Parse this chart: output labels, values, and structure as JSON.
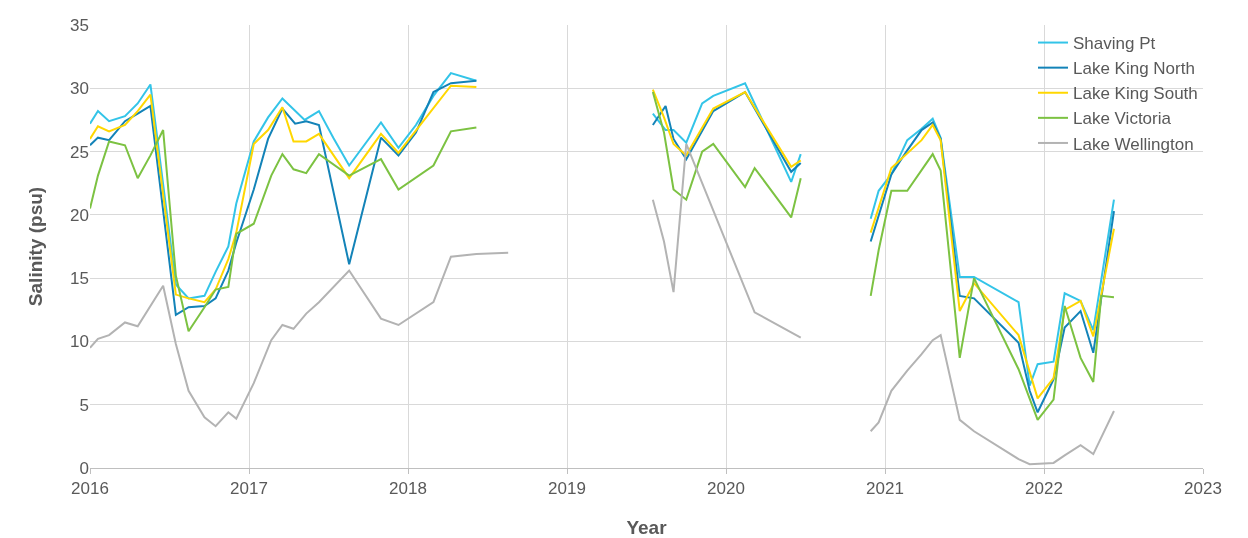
{
  "chart_data": {
    "type": "line",
    "xlabel": "Year",
    "ylabel": "Salinity (psu)",
    "xlim": [
      2016,
      2023
    ],
    "xticks": [
      2016,
      2017,
      2018,
      2019,
      2020,
      2021,
      2022,
      2023
    ],
    "ylim": [
      0,
      35
    ],
    "yticks": [
      0,
      5,
      10,
      15,
      20,
      25,
      30,
      35
    ],
    "grid": true,
    "legend": "top right",
    "marker": "none",
    "line_style": "solid",
    "series": [
      {
        "name": "Shaving Pt",
        "color": "#33c4e8",
        "x": [
          2016.0,
          2016.05,
          2016.12,
          2016.22,
          2016.3,
          2016.38,
          2016.54,
          2016.62,
          2016.72,
          2016.79,
          2016.87,
          2016.92,
          2017.03,
          2017.12,
          2017.21,
          2017.35,
          2017.44,
          2017.53,
          2017.63,
          2017.83,
          2017.94,
          2018.05,
          2018.16,
          2018.27,
          2018.43,
          2019.0,
          2019.54,
          2019.62,
          2019.67,
          2019.75,
          2019.85,
          2019.92,
          2020.12,
          2020.41,
          2020.47,
          2020.7,
          2020.91,
          2020.96,
          2021.04,
          2021.14,
          2021.23,
          2021.3,
          2021.35,
          2021.47,
          2021.56,
          2021.84,
          2021.91,
          2021.96,
          2022.06,
          2022.13,
          2022.23,
          2022.31,
          2022.44
        ],
        "values": [
          27.2,
          28.2,
          27.4,
          27.8,
          28.8,
          30.3,
          14.5,
          13.4,
          13.6,
          15.5,
          17.5,
          20.9,
          25.8,
          27.7,
          29.2,
          27.5,
          28.2,
          26.1,
          23.9,
          27.3,
          25.3,
          27.1,
          29.4,
          31.2,
          30.6,
          null,
          28.0,
          26.7,
          26.7,
          25.7,
          28.8,
          29.4,
          30.4,
          22.6,
          24.8,
          null,
          19.7,
          21.9,
          23.2,
          25.9,
          26.8,
          27.6,
          26.1,
          15.1,
          15.1,
          13.1,
          6.5,
          8.2,
          8.4,
          13.8,
          13.2,
          10.9,
          21.2
        ]
      },
      {
        "name": "Lake King North",
        "color": "#1383b8",
        "x": [
          2016.0,
          2016.05,
          2016.12,
          2016.22,
          2016.3,
          2016.38,
          2016.54,
          2016.62,
          2016.72,
          2016.79,
          2016.87,
          2016.92,
          2017.03,
          2017.12,
          2017.21,
          2017.29,
          2017.36,
          2017.44,
          2017.63,
          2017.83,
          2017.94,
          2018.05,
          2018.16,
          2018.27,
          2018.43,
          2019.0,
          2019.54,
          2019.62,
          2019.67,
          2019.75,
          2019.92,
          2020.12,
          2020.41,
          2020.47,
          2020.7,
          2020.91,
          2021.04,
          2021.14,
          2021.23,
          2021.3,
          2021.35,
          2021.47,
          2021.56,
          2021.84,
          2021.91,
          2021.96,
          2022.06,
          2022.13,
          2022.23,
          2022.31,
          2022.44
        ],
        "values": [
          25.5,
          26.1,
          25.9,
          27.4,
          28.0,
          28.6,
          12.1,
          12.7,
          12.8,
          13.4,
          15.6,
          17.8,
          22.0,
          26.0,
          28.4,
          27.2,
          27.4,
          27.1,
          16.1,
          26.1,
          24.7,
          26.5,
          29.7,
          30.4,
          30.6,
          null,
          27.1,
          28.6,
          26.0,
          24.4,
          28.2,
          29.7,
          23.4,
          24.1,
          null,
          17.9,
          23.2,
          25.1,
          26.7,
          27.3,
          26.0,
          13.6,
          13.4,
          9.9,
          6.1,
          4.4,
          7.0,
          11.1,
          12.4,
          9.1,
          20.3
        ]
      },
      {
        "name": "Lake King South",
        "color": "#ffd700",
        "x": [
          2016.0,
          2016.05,
          2016.12,
          2016.22,
          2016.3,
          2016.38,
          2016.54,
          2016.62,
          2016.72,
          2016.79,
          2016.87,
          2016.92,
          2017.03,
          2017.12,
          2017.21,
          2017.28,
          2017.36,
          2017.44,
          2017.63,
          2017.83,
          2017.94,
          2018.27,
          2018.43,
          2019.0,
          2019.54,
          2019.61,
          2019.67,
          2019.75,
          2019.92,
          2020.12,
          2020.41,
          2020.47,
          2020.7,
          2020.91,
          2021.04,
          2021.23,
          2021.3,
          2021.35,
          2021.47,
          2021.56,
          2021.84,
          2021.96,
          2022.06,
          2022.13,
          2022.23,
          2022.31,
          2022.44
        ],
        "values": [
          26.0,
          27.0,
          26.6,
          27.1,
          28.2,
          29.5,
          13.7,
          13.4,
          13.1,
          14.1,
          16.5,
          18.6,
          25.6,
          26.7,
          28.5,
          25.8,
          25.8,
          26.4,
          22.9,
          26.4,
          24.9,
          30.2,
          30.1,
          null,
          29.9,
          27.7,
          25.6,
          24.7,
          28.4,
          29.7,
          23.8,
          24.3,
          null,
          18.6,
          23.7,
          25.9,
          27.1,
          25.9,
          12.4,
          14.6,
          10.5,
          5.5,
          7.1,
          12.5,
          13.2,
          10.4,
          18.9
        ]
      },
      {
        "name": "Lake Victoria",
        "color": "#7cc242",
        "x": [
          2016.0,
          2016.05,
          2016.12,
          2016.22,
          2016.3,
          2016.38,
          2016.46,
          2016.54,
          2016.62,
          2016.72,
          2016.79,
          2016.87,
          2016.92,
          2017.03,
          2017.14,
          2017.21,
          2017.28,
          2017.36,
          2017.44,
          2017.63,
          2017.83,
          2017.94,
          2018.16,
          2018.27,
          2018.43,
          2019.0,
          2019.54,
          2019.61,
          2019.67,
          2019.75,
          2019.85,
          2019.92,
          2020.12,
          2020.18,
          2020.41,
          2020.47,
          2020.7,
          2020.91,
          2020.96,
          2021.04,
          2021.14,
          2021.3,
          2021.35,
          2021.47,
          2021.56,
          2021.84,
          2021.96,
          2022.06,
          2022.13,
          2022.23,
          2022.31,
          2022.36,
          2022.44
        ],
        "values": [
          20.5,
          23.1,
          25.8,
          25.5,
          22.9,
          24.7,
          26.7,
          15.2,
          10.8,
          12.7,
          14.1,
          14.3,
          18.5,
          19.3,
          23.1,
          24.8,
          23.6,
          23.3,
          24.8,
          23.1,
          24.4,
          22.0,
          23.9,
          26.6,
          26.9,
          null,
          29.7,
          26.5,
          22.0,
          21.2,
          25.0,
          25.6,
          22.2,
          23.7,
          19.8,
          22.9,
          null,
          13.6,
          17.2,
          21.9,
          21.9,
          24.8,
          23.5,
          8.7,
          15.0,
          7.8,
          3.8,
          5.4,
          12.8,
          8.7,
          6.8,
          13.6,
          13.5
        ]
      },
      {
        "name": "Lake Wellington",
        "color": "#b3b3b3",
        "x": [
          2016.0,
          2016.05,
          2016.12,
          2016.22,
          2016.3,
          2016.46,
          2016.54,
          2016.62,
          2016.72,
          2016.79,
          2016.87,
          2016.92,
          2017.03,
          2017.14,
          2017.21,
          2017.28,
          2017.36,
          2017.44,
          2017.63,
          2017.83,
          2017.94,
          2018.16,
          2018.27,
          2018.43,
          2018.63,
          2019.0,
          2019.54,
          2019.61,
          2019.67,
          2019.75,
          2020.18,
          2020.47,
          2020.7,
          2020.91,
          2020.96,
          2021.04,
          2021.14,
          2021.23,
          2021.3,
          2021.35,
          2021.47,
          2021.56,
          2021.84,
          2021.91,
          2022.06,
          2022.13,
          2022.23,
          2022.31,
          2022.44
        ],
        "values": [
          9.5,
          10.2,
          10.5,
          11.5,
          11.2,
          14.4,
          9.8,
          6.1,
          4.0,
          3.3,
          4.4,
          3.9,
          6.7,
          10.1,
          11.3,
          11.0,
          12.2,
          13.1,
          15.6,
          11.8,
          11.3,
          13.1,
          16.7,
          16.9,
          17.0,
          null,
          21.2,
          17.9,
          13.9,
          25.6,
          12.3,
          10.3,
          null,
          2.9,
          3.6,
          6.1,
          7.7,
          9.0,
          10.1,
          10.5,
          3.8,
          2.9,
          0.7,
          0.3,
          0.4,
          1.0,
          1.8,
          1.1,
          4.5
        ]
      }
    ]
  }
}
